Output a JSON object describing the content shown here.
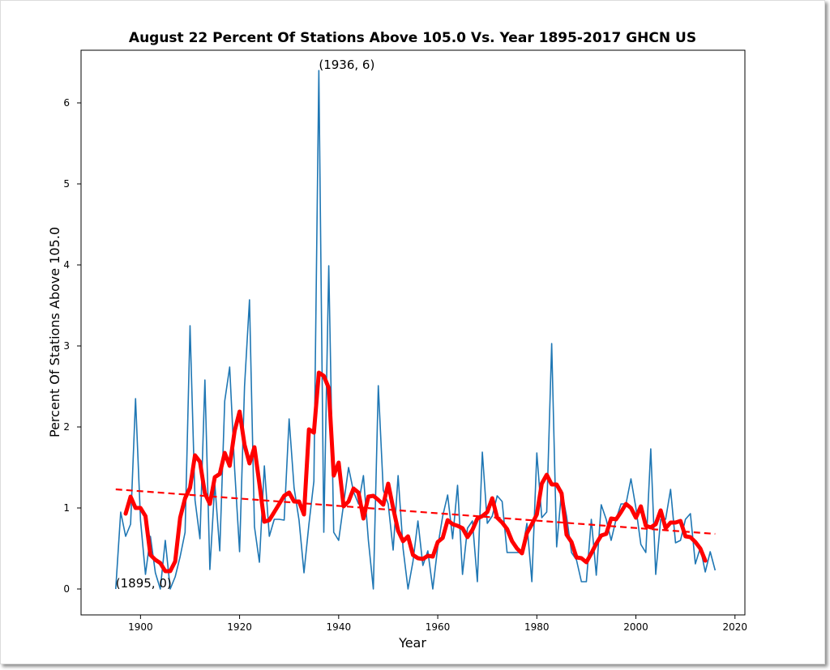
{
  "chart_data": {
    "type": "line",
    "title": "August 22 Percent Of Stations Above 105.0 Vs. Year 1895-2017 GHCN US",
    "xlabel": "Year",
    "ylabel": "Percent Of Stations Above 105.0",
    "xlim": [
      1888,
      2022
    ],
    "ylim": [
      -0.32,
      6.65
    ],
    "x_ticks": [
      1900,
      1920,
      1940,
      1960,
      1980,
      2000,
      2020
    ],
    "y_ticks": [
      0,
      1,
      2,
      3,
      4,
      5,
      6
    ],
    "grid": false,
    "colors": {
      "raw": "#1f77b4",
      "smoothed": "#ff0000",
      "trend": "#ff0000"
    },
    "annotations": [
      {
        "text": "(1936, 6)",
        "x": 1936,
        "y": 6.4
      },
      {
        "text": "(1895, 0)",
        "x": 1895,
        "y": 0.0
      }
    ],
    "series": [
      {
        "style": "thin",
        "x_start": 1895,
        "values": [
          0.0,
          0.95,
          0.65,
          0.8,
          2.35,
          0.85,
          0.18,
          0.65,
          0.2,
          0.0,
          0.6,
          0.0,
          0.15,
          0.4,
          0.7,
          3.25,
          1.1,
          0.62,
          2.58,
          0.24,
          1.3,
          0.47,
          2.32,
          2.74,
          1.48,
          0.46,
          2.5,
          3.57,
          0.77,
          0.33,
          1.52,
          0.65,
          0.86,
          0.86,
          0.85,
          2.1,
          1.25,
          0.85,
          0.2,
          0.8,
          1.33,
          6.4,
          0.7,
          3.99,
          0.7,
          0.6,
          1.05,
          1.5,
          1.2,
          1.05,
          1.4,
          0.6,
          0.0,
          2.51,
          1.22,
          1.05,
          0.48,
          1.4,
          0.5,
          0.0,
          0.34,
          0.84,
          0.29,
          0.47,
          0.0,
          0.52,
          0.9,
          1.16,
          0.62,
          1.28,
          0.18,
          0.75,
          0.84,
          0.09,
          1.69,
          0.81,
          0.9,
          1.15,
          1.08,
          0.45,
          0.45,
          0.45,
          0.45,
          0.81,
          0.09,
          1.68,
          0.88,
          0.95,
          3.03,
          0.52,
          1.22,
          0.9,
          0.45,
          0.36,
          0.09,
          0.09,
          0.86,
          0.17,
          1.04,
          0.86,
          0.6,
          0.86,
          1.05,
          1.05,
          1.36,
          1.0,
          0.55,
          0.45,
          1.73,
          0.18,
          0.86,
          0.86,
          1.23,
          0.57,
          0.6,
          0.86,
          0.93,
          0.31,
          0.51,
          0.21,
          0.46,
          0.23
        ]
      },
      {
        "style": "thick",
        "x_start": 1897,
        "values": [
          0.93,
          1.14,
          1.0,
          1.0,
          0.9,
          0.42,
          0.36,
          0.32,
          0.22,
          0.22,
          0.34,
          0.88,
          1.12,
          1.25,
          1.65,
          1.57,
          1.18,
          1.05,
          1.38,
          1.42,
          1.68,
          1.52,
          1.95,
          2.19,
          1.78,
          1.55,
          1.75,
          1.3,
          0.83,
          0.85,
          0.95,
          1.05,
          1.15,
          1.19,
          1.08,
          1.08,
          0.92,
          1.97,
          1.93,
          2.67,
          2.63,
          2.48,
          1.4,
          1.56,
          1.02,
          1.08,
          1.24,
          1.19,
          0.87,
          1.14,
          1.15,
          1.1,
          1.04,
          1.3,
          1.0,
          0.72,
          0.59,
          0.65,
          0.42,
          0.38,
          0.37,
          0.41,
          0.4,
          0.58,
          0.63,
          0.85,
          0.8,
          0.78,
          0.75,
          0.64,
          0.73,
          0.87,
          0.9,
          0.95,
          1.12,
          0.88,
          0.82,
          0.74,
          0.59,
          0.5,
          0.44,
          0.69,
          0.8,
          0.92,
          1.3,
          1.41,
          1.29,
          1.29,
          1.18,
          0.67,
          0.58,
          0.39,
          0.38,
          0.33,
          0.44,
          0.56,
          0.66,
          0.68,
          0.87,
          0.86,
          0.95,
          1.05,
          1.0,
          0.88,
          1.02,
          0.78,
          0.76,
          0.8,
          0.97,
          0.75,
          0.82,
          0.82,
          0.84,
          0.65,
          0.64,
          0.58,
          0.5,
          0.35
        ]
      },
      {
        "style": "dashed",
        "x": [
          1895,
          2016
        ],
        "y": [
          1.23,
          0.68
        ]
      }
    ]
  }
}
